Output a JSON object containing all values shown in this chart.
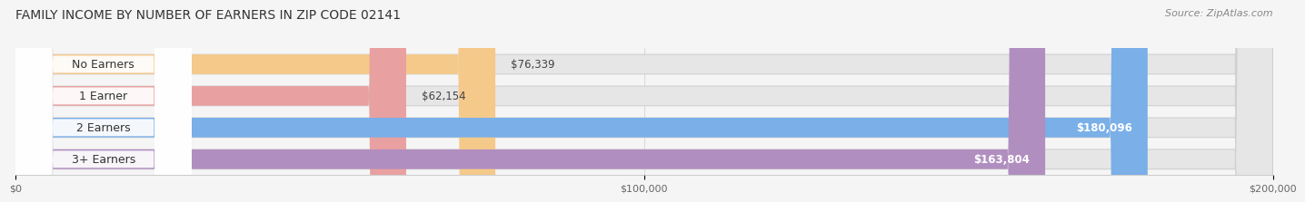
{
  "title": "FAMILY INCOME BY NUMBER OF EARNERS IN ZIP CODE 02141",
  "source": "Source: ZipAtlas.com",
  "categories": [
    "No Earners",
    "1 Earner",
    "2 Earners",
    "3+ Earners"
  ],
  "values": [
    76339,
    62154,
    180096,
    163804
  ],
  "bar_colors": [
    "#f5c98a",
    "#e8a0a0",
    "#7aafe8",
    "#b08fc0"
  ],
  "value_label_inside": [
    false,
    false,
    true,
    true
  ],
  "bar_bg_color": "#e6e6e6",
  "background_color": "#f5f5f5",
  "xlim": [
    0,
    200000
  ],
  "xticks": [
    0,
    100000,
    200000
  ],
  "xtick_labels": [
    "$0",
    "$100,000",
    "$200,000"
  ],
  "value_labels": [
    "$76,339",
    "$62,154",
    "$180,096",
    "$163,804"
  ],
  "title_fontsize": 10,
  "source_fontsize": 8,
  "value_fontsize": 8.5,
  "category_fontsize": 9
}
